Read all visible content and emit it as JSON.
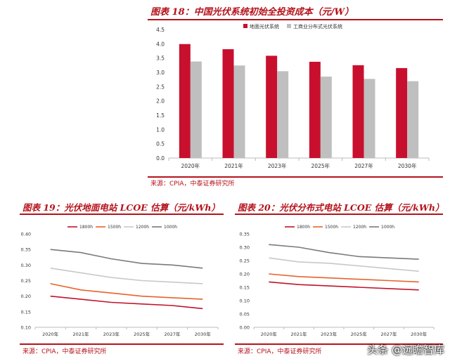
{
  "chart_data": [
    {
      "type": "bar",
      "figure_title": "图表 18：中国光伏系统初始全投资成本（元/W）",
      "categories": [
        "2020年",
        "2021年",
        "2023年",
        "2025年",
        "2027年",
        "2030年"
      ],
      "series": [
        {
          "name": "地面光伏系统",
          "color": "#c8102e",
          "values": [
            3.99,
            3.81,
            3.58,
            3.37,
            3.25,
            3.15
          ]
        },
        {
          "name": "工商业分布式光伏系统",
          "color": "#bfbfbf",
          "values": [
            3.38,
            3.24,
            3.04,
            2.85,
            2.77,
            2.69
          ]
        }
      ],
      "ylim": [
        0,
        4.5
      ],
      "yticks": [
        "0.0",
        "0.5",
        "1.0",
        "1.5",
        "2.0",
        "2.5",
        "3.0",
        "3.5",
        "4.0",
        "4.5"
      ],
      "legend_position": "top-right",
      "source": "来源：CPIA，中泰证券研究所"
    },
    {
      "type": "line",
      "figure_title": "图表 19：光伏地面电站 LCOE 估算（元/kWh）",
      "categories": [
        "2020年",
        "2021年",
        "2023年",
        "2025年",
        "2027年",
        "2030年"
      ],
      "series": [
        {
          "name": "1800h",
          "color": "#c0142b",
          "values": [
            0.2,
            0.19,
            0.18,
            0.175,
            0.17,
            0.16
          ]
        },
        {
          "name": "1500h",
          "color": "#e8622c",
          "values": [
            0.24,
            0.22,
            0.21,
            0.2,
            0.195,
            0.19
          ]
        },
        {
          "name": "1200h",
          "color": "#c8c8c8",
          "values": [
            0.29,
            0.275,
            0.26,
            0.25,
            0.245,
            0.24
          ]
        },
        {
          "name": "1000h",
          "color": "#7a7a7a",
          "values": [
            0.35,
            0.34,
            0.32,
            0.305,
            0.3,
            0.29
          ]
        }
      ],
      "ylim": [
        0.1,
        0.4
      ],
      "yticks": [
        "0.10",
        "0.15",
        "0.20",
        "0.25",
        "0.30",
        "0.35",
        "0.40"
      ],
      "legend_position": "top",
      "source": "来源：CPIA，中泰证券研究所"
    },
    {
      "type": "line",
      "figure_title": "图表 20：光伏分布式电站 LCOE 估算（元/kWh）",
      "categories": [
        "2020年",
        "2021年",
        "2023年",
        "2025年",
        "2027年",
        "2030年"
      ],
      "series": [
        {
          "name": "1800h",
          "color": "#c0142b",
          "values": [
            0.17,
            0.16,
            0.155,
            0.15,
            0.145,
            0.14
          ]
        },
        {
          "name": "1500h",
          "color": "#e8622c",
          "values": [
            0.2,
            0.19,
            0.185,
            0.18,
            0.175,
            0.17
          ]
        },
        {
          "name": "1200h",
          "color": "#c8c8c8",
          "values": [
            0.26,
            0.245,
            0.24,
            0.23,
            0.22,
            0.21
          ]
        },
        {
          "name": "1000h",
          "color": "#7a7a7a",
          "values": [
            0.31,
            0.3,
            0.28,
            0.265,
            0.26,
            0.255
          ]
        }
      ],
      "ylim": [
        0.0,
        0.35
      ],
      "yticks": [
        "0.00",
        "0.05",
        "0.10",
        "0.15",
        "0.20",
        "0.25",
        "0.30",
        "0.35"
      ],
      "legend_position": "top",
      "source": "来源：CPIA，中泰证券研究所"
    }
  ],
  "watermark": "头条 @远瞻智库"
}
